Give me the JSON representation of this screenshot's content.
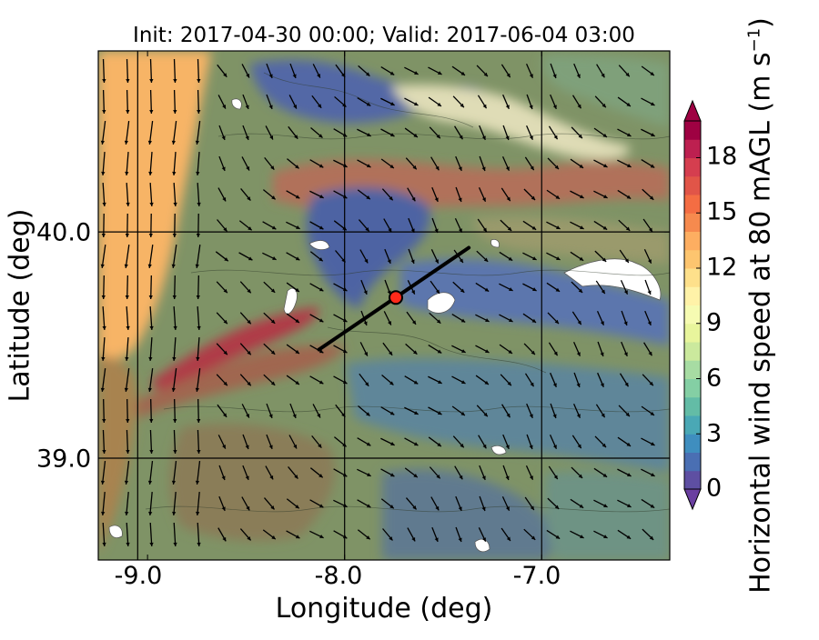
{
  "title": "Init: 2017-04-30 00:00; Valid: 2017-06-04 03:00",
  "axes": {
    "xlabel": "Longitude (deg)",
    "ylabel": "Latitude (deg)",
    "xticks": [
      "-9.0",
      "-8.0",
      "-7.0"
    ],
    "yticks": [
      "40.0",
      "39.0"
    ],
    "xlim": [
      -9.25,
      -6.35
    ],
    "ylim": [
      38.55,
      40.8
    ]
  },
  "colorbar": {
    "label_main": "Horizontal wind speed at 80 mAGL (m s",
    "label_exp": "−1",
    "label_close": ")",
    "ticks": [
      "0",
      "3",
      "6",
      "9",
      "12",
      "15",
      "18"
    ],
    "range": [
      0,
      20
    ],
    "colors": [
      "#5e4fa2",
      "#4a6fb3",
      "#3f8ebf",
      "#4aa8b5",
      "#63bca6",
      "#84cfa4",
      "#a7dca3",
      "#cbe99d",
      "#e8f59c",
      "#f6fbb2",
      "#fff2a8",
      "#fee08b",
      "#fdc56f",
      "#fdae61",
      "#f68a4e",
      "#f46d43",
      "#e15548",
      "#d53e4f",
      "#bd2050",
      "#9e0142"
    ],
    "extend": "both"
  },
  "map_overlay": {
    "transect_line": {
      "start": [
        -8.13,
        39.48
      ],
      "end": [
        -7.37,
        39.93
      ]
    },
    "marker": {
      "lon": -7.74,
      "lat": 39.71,
      "color": "#ff2a1a"
    },
    "gridlines": {
      "lons": [
        -9.05,
        -8.0,
        -7.0
      ],
      "lats": [
        40.0,
        39.0
      ]
    }
  },
  "colors": {
    "ocean": "#f7b466",
    "land": "#7f9366",
    "arrow": "#000000"
  }
}
